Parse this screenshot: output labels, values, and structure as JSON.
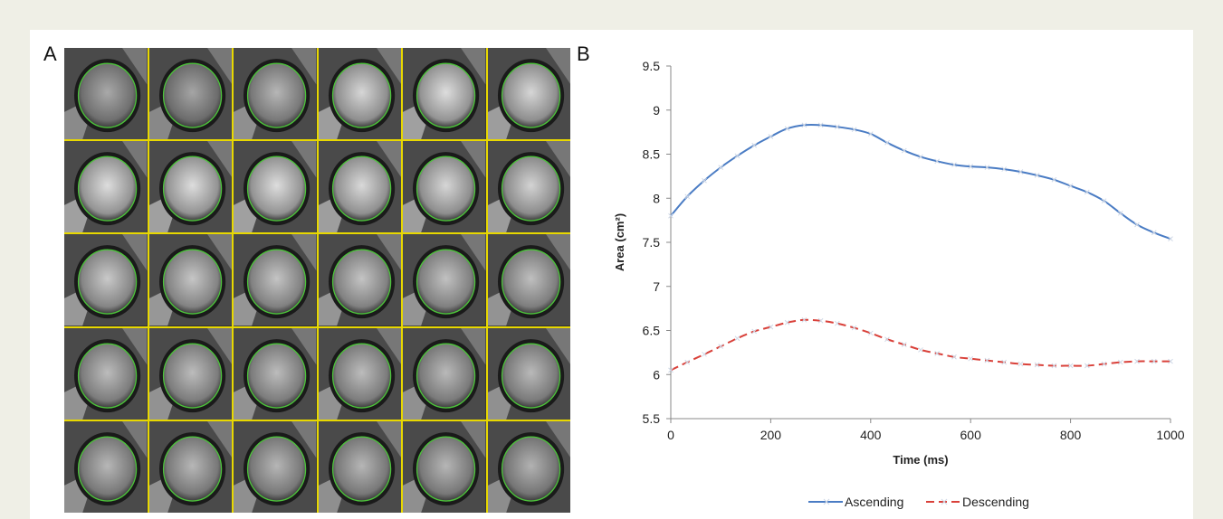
{
  "panels": {
    "a_label": "A",
    "b_label": "B"
  },
  "mri": {
    "rows": 5,
    "cols": 6,
    "brightness": [
      [
        0.45,
        0.42,
        0.55,
        0.8,
        0.85,
        0.8
      ],
      [
        0.85,
        0.85,
        0.85,
        0.82,
        0.8,
        0.78
      ],
      [
        0.7,
        0.68,
        0.66,
        0.66,
        0.64,
        0.62
      ],
      [
        0.6,
        0.6,
        0.6,
        0.6,
        0.58,
        0.58
      ],
      [
        0.56,
        0.56,
        0.55,
        0.55,
        0.55,
        0.52
      ]
    ],
    "contour_color": "#4cc43a",
    "grid_line_color": "#e8d800"
  },
  "chart_data": {
    "type": "line",
    "xlabel": "Time (ms)",
    "ylabel": "Area (cm²)",
    "xlim": [
      0,
      1000
    ],
    "ylim": [
      5.5,
      9.5
    ],
    "xticks": [
      0,
      200,
      400,
      600,
      800,
      1000
    ],
    "yticks": [
      5.5,
      6,
      6.5,
      7,
      7.5,
      8,
      8.5,
      9,
      9.5
    ],
    "grid": false,
    "legend_position": "bottom",
    "series": [
      {
        "name": "Ascending",
        "color": "#4a7cc4",
        "style": "solid",
        "x": [
          0,
          33,
          67,
          100,
          133,
          167,
          200,
          233,
          267,
          300,
          333,
          367,
          400,
          433,
          467,
          500,
          533,
          567,
          600,
          633,
          667,
          700,
          733,
          767,
          800,
          833,
          867,
          900,
          933,
          967,
          1000
        ],
        "y": [
          7.8,
          8.02,
          8.2,
          8.35,
          8.48,
          8.6,
          8.7,
          8.79,
          8.83,
          8.83,
          8.81,
          8.78,
          8.73,
          8.63,
          8.54,
          8.47,
          8.42,
          8.38,
          8.36,
          8.35,
          8.33,
          8.3,
          8.26,
          8.21,
          8.14,
          8.07,
          7.97,
          7.83,
          7.7,
          7.61,
          7.54
        ]
      },
      {
        "name": "Descending",
        "color": "#d9413a",
        "style": "dashed",
        "x": [
          0,
          33,
          67,
          100,
          133,
          167,
          200,
          233,
          267,
          300,
          333,
          367,
          400,
          433,
          467,
          500,
          533,
          567,
          600,
          633,
          667,
          700,
          733,
          767,
          800,
          833,
          867,
          900,
          933,
          967,
          1000
        ],
        "y": [
          6.05,
          6.14,
          6.23,
          6.32,
          6.41,
          6.49,
          6.54,
          6.59,
          6.62,
          6.61,
          6.58,
          6.53,
          6.47,
          6.4,
          6.34,
          6.28,
          6.24,
          6.2,
          6.18,
          6.16,
          6.14,
          6.12,
          6.11,
          6.1,
          6.1,
          6.1,
          6.12,
          6.14,
          6.15,
          6.15,
          6.15
        ]
      }
    ]
  }
}
